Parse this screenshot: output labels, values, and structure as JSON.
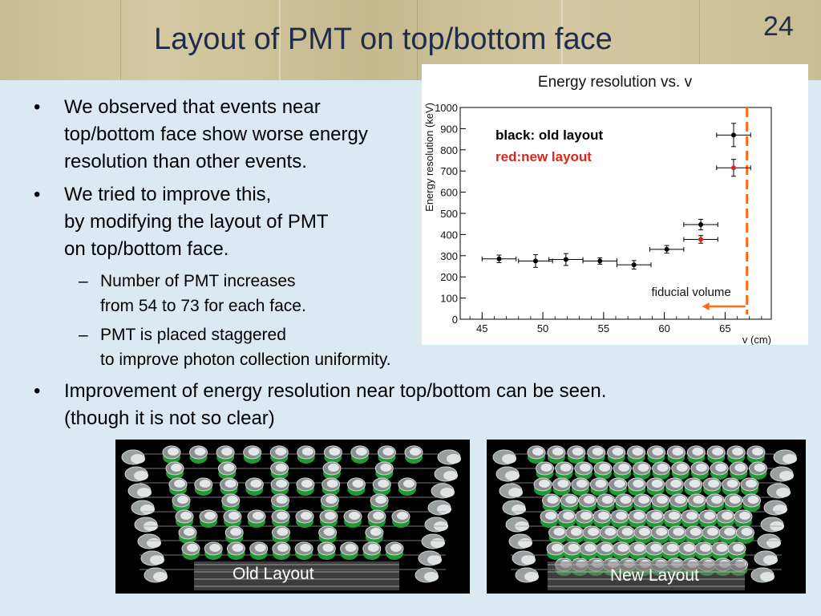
{
  "slide": {
    "title": "Layout of PMT on top/bottom face",
    "number": "24"
  },
  "bullets": [
    {
      "text": "We observed that events near\ntop/bottom face show worse energy\nresolution than other events."
    },
    {
      "text": "We tried to improve this,\nby modifying the layout of PMT\non top/bottom face."
    },
    {
      "text": "Number of PMT increases\nfrom 54 to 73 for each face."
    },
    {
      "text": "PMT is placed staggered\nto improve photon collection uniformity."
    },
    {
      "text": "Improvement of energy resolution near top/bottom can be seen.\n(though it is not so clear)"
    }
  ],
  "bullet_markers": {
    "level1": "•",
    "level2": "–"
  },
  "images": {
    "old_label": "Old Layout",
    "new_label": "New Layout"
  },
  "chart_data": {
    "type": "scatter",
    "title": "Energy resolution vs. v",
    "xlabel": "v (cm)",
    "ylabel": "Energy resolution (keV)",
    "xlim": [
      43.2,
      68.8
    ],
    "ylim": [
      0,
      1000
    ],
    "x_ticks": [
      45,
      50,
      55,
      60,
      65
    ],
    "y_ticks": [
      0,
      100,
      200,
      300,
      400,
      500,
      600,
      700,
      800,
      900,
      1000
    ],
    "series": [
      {
        "legend": "black: old layout",
        "color": "#000000",
        "points": [
          {
            "x": 46.4,
            "y": 285,
            "xerr": 1.4,
            "yerr": 18
          },
          {
            "x": 49.4,
            "y": 275,
            "xerr": 1.4,
            "yerr": 30
          },
          {
            "x": 51.9,
            "y": 282,
            "xerr": 1.4,
            "yerr": 28
          },
          {
            "x": 54.7,
            "y": 275,
            "xerr": 1.4,
            "yerr": 15
          },
          {
            "x": 57.5,
            "y": 257,
            "xerr": 1.4,
            "yerr": 20
          },
          {
            "x": 60.2,
            "y": 330,
            "xerr": 1.4,
            "yerr": 18
          },
          {
            "x": 63.0,
            "y": 447,
            "xerr": 1.4,
            "yerr": 25
          },
          {
            "x": 65.7,
            "y": 870,
            "xerr": 1.4,
            "yerr": 55
          }
        ]
      },
      {
        "legend": "red:new layout",
        "color": "#e0241b",
        "points": [
          {
            "x": 63.0,
            "y": 377,
            "xerr": 1.4,
            "yerr": 18
          },
          {
            "x": 65.7,
            "y": 715,
            "xerr": 1.4,
            "yerr": 40
          }
        ]
      }
    ],
    "annotation": {
      "text": "fiducial volume",
      "boundary_x": 66.8,
      "color": "#ff6a13"
    },
    "grid": false
  }
}
